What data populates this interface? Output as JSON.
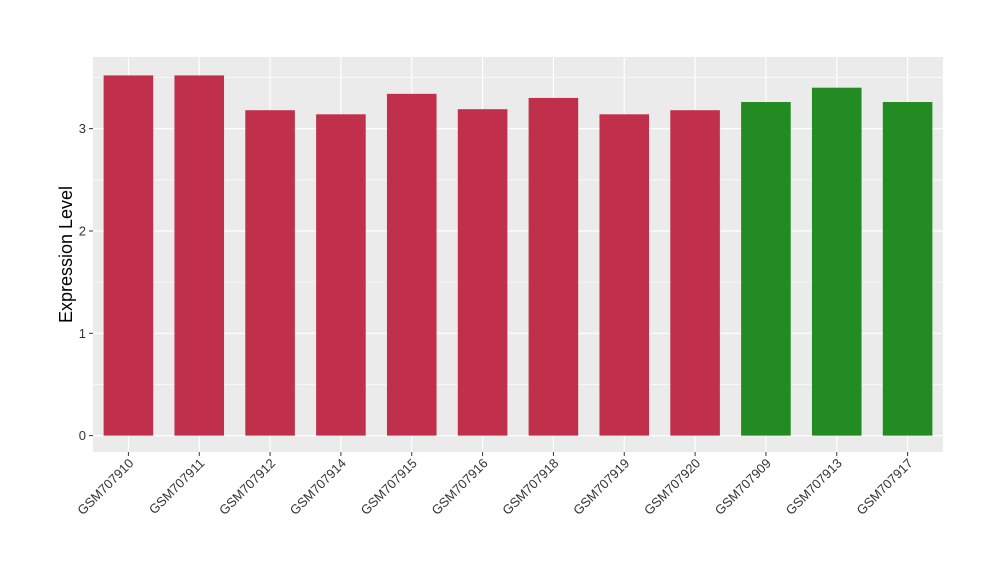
{
  "chart_data": {
    "type": "bar",
    "categories": [
      "GSM707910",
      "GSM707911",
      "GSM707912",
      "GSM707914",
      "GSM707915",
      "GSM707916",
      "GSM707918",
      "GSM707919",
      "GSM707920",
      "GSM707909",
      "GSM707913",
      "GSM707917"
    ],
    "values": [
      3.52,
      3.52,
      3.18,
      3.14,
      3.34,
      3.19,
      3.3,
      3.14,
      3.18,
      3.26,
      3.4,
      3.26
    ],
    "bar_colors": [
      "#c0304a",
      "#c0304a",
      "#c0304a",
      "#c0304a",
      "#c0304a",
      "#c0304a",
      "#c0304a",
      "#c0304a",
      "#c0304a",
      "#228b22",
      "#228b22",
      "#228b22"
    ],
    "xlabel": "",
    "ylabel": "Expression Level",
    "ylim": [
      -0.16,
      3.7
    ],
    "yticks": [
      0,
      1,
      2,
      3
    ],
    "grid": true,
    "panel_background": "#ebebeb",
    "grid_color": "#ffffff"
  }
}
